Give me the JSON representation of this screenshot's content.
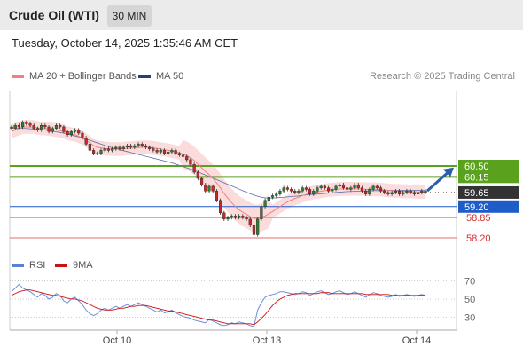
{
  "header": {
    "instrument": "Crude Oil (WTI)",
    "timeframe": "30 MIN"
  },
  "timestamp": "Tuesday, October 14, 2025 1:35:46 AM CET",
  "legend": {
    "bb_label": "MA 20 + Bollinger Bands",
    "ma50_label": "MA 50",
    "rsi_label": "RSI",
    "rsi_ma_label": "9MA"
  },
  "copyright": "Research © 2025 Trading Central",
  "colors": {
    "bb_fill": "#fbdcdc",
    "ma20": "#f08080",
    "ma50": "#5b6fa8",
    "support_green": "#5aa11e",
    "pivot_blue": "#1e5cc8",
    "support_red": "#e06b6b",
    "arrow": "#2a5db0",
    "rsi": "#6f8fd8",
    "rsi_ma": "#cc1111"
  },
  "chart_data": {
    "type": "candlestick",
    "price_axis": {
      "ylim": [
        57.95,
        60.95
      ]
    },
    "x_ticks": [
      "Oct 10",
      "Oct 13",
      "Oct 14"
    ],
    "levels": [
      {
        "value": 60.5,
        "label": "60.50",
        "kind": "resistance",
        "color": "#5aa11e"
      },
      {
        "value": 60.15,
        "label": "60.15",
        "kind": "resistance",
        "color": "#5aa11e"
      },
      {
        "value": 59.65,
        "label": "59.65",
        "kind": "last_price",
        "color": "#333333"
      },
      {
        "value": 59.2,
        "label": "59.20",
        "kind": "pivot",
        "color": "#1e5cc8"
      },
      {
        "value": 58.85,
        "label": "58.85",
        "kind": "support",
        "color": "#e06b6b"
      },
      {
        "value": 58.2,
        "label": "58.20",
        "kind": "support",
        "color": "#e06b6b"
      }
    ],
    "close_series": [
      61.7,
      61.8,
      61.75,
      61.9,
      61.85,
      61.8,
      61.7,
      61.65,
      61.8,
      61.75,
      61.6,
      61.7,
      61.8,
      61.75,
      61.6,
      61.5,
      61.6,
      61.65,
      61.55,
      61.4,
      61.2,
      61.0,
      60.9,
      60.9,
      61.0,
      61.05,
      61.0,
      61.05,
      61.1,
      61.05,
      61.1,
      61.15,
      61.1,
      61.15,
      61.2,
      61.15,
      61.1,
      61.05,
      61.0,
      60.95,
      61.0,
      60.9,
      60.95,
      61.0,
      60.9,
      60.85,
      60.8,
      60.7,
      60.55,
      60.3,
      60.1,
      59.9,
      59.7,
      59.85,
      59.7,
      59.4,
      59.0,
      58.8,
      58.85,
      58.9,
      58.85,
      58.9,
      58.85,
      58.8,
      58.6,
      58.3,
      58.8,
      59.2,
      59.4,
      59.5,
      59.55,
      59.6,
      59.7,
      59.8,
      59.75,
      59.7,
      59.65,
      59.7,
      59.8,
      59.75,
      59.6,
      59.7,
      59.8,
      59.85,
      59.8,
      59.7,
      59.75,
      59.85,
      59.9,
      59.8,
      59.75,
      59.8,
      59.9,
      59.8,
      59.7,
      59.6,
      59.75,
      59.85,
      59.8,
      59.7,
      59.65,
      59.6,
      59.65,
      59.7,
      59.6,
      59.65,
      59.7,
      59.65,
      59.6,
      59.65,
      59.7,
      59.65
    ],
    "ma20_series": [
      61.6,
      61.65,
      61.7,
      61.75,
      61.75,
      61.75,
      61.75,
      61.72,
      61.7,
      61.7,
      61.68,
      61.66,
      61.65,
      61.63,
      61.6,
      61.55,
      61.52,
      61.5,
      61.45,
      61.4,
      61.32,
      61.24,
      61.15,
      61.1,
      61.08,
      61.06,
      61.05,
      61.04,
      61.04,
      61.04,
      61.05,
      61.06,
      61.07,
      61.08,
      61.09,
      61.1,
      61.1,
      61.09,
      61.08,
      61.06,
      61.04,
      61.02,
      61.0,
      60.98,
      60.95,
      60.92,
      60.88,
      60.83,
      60.76,
      60.67,
      60.56,
      60.44,
      60.32,
      60.22,
      60.1,
      59.96,
      59.8,
      59.62,
      59.47,
      59.33,
      59.2,
      59.1,
      59.02,
      58.95,
      58.88,
      58.82,
      58.82,
      58.85,
      58.9,
      58.97,
      59.04,
      59.12,
      59.2,
      59.28,
      59.35,
      59.41,
      59.46,
      59.5,
      59.55,
      59.59,
      59.62,
      59.65,
      59.67,
      59.69,
      59.71,
      59.73,
      59.74,
      59.75,
      59.76,
      59.77,
      59.77,
      59.77,
      59.77,
      59.77,
      59.76,
      59.75,
      59.75,
      59.75,
      59.75,
      59.74,
      59.73,
      59.72,
      59.71,
      59.7,
      59.7,
      59.69,
      59.69,
      59.68,
      59.68,
      59.67,
      59.67,
      59.66
    ],
    "ma50_series": [
      61.72,
      61.72,
      61.71,
      61.7,
      61.7,
      61.69,
      61.68,
      61.67,
      61.66,
      61.65,
      61.63,
      61.61,
      61.59,
      61.57,
      61.55,
      61.52,
      61.49,
      61.46,
      61.43,
      61.4,
      61.36,
      61.32,
      61.28,
      61.24,
      61.2,
      61.16,
      61.12,
      61.08,
      61.05,
      61.02,
      60.99,
      60.96,
      60.93,
      60.9,
      60.87,
      60.84,
      60.81,
      60.78,
      60.75,
      60.72,
      60.69,
      60.66,
      60.63,
      60.6,
      60.56,
      60.52,
      60.48,
      60.44,
      60.4,
      60.36,
      60.31,
      60.26,
      60.21,
      60.16,
      60.11,
      60.06,
      60.01,
      59.96,
      59.91,
      59.86,
      59.81,
      59.76,
      59.71,
      59.66,
      59.61,
      59.57,
      59.53,
      59.5,
      59.48,
      59.47,
      59.47,
      59.48,
      59.49,
      59.5,
      59.51,
      59.52,
      59.53,
      59.54,
      59.56,
      59.57,
      59.58,
      59.59,
      59.6,
      59.61,
      59.62,
      59.63,
      59.64,
      59.65,
      59.66,
      59.67,
      59.68,
      59.68,
      59.69,
      59.69,
      59.7,
      59.7,
      59.7,
      59.71,
      59.71,
      59.71,
      59.71,
      59.72,
      59.72,
      59.72,
      59.72,
      59.72,
      59.72,
      59.72,
      59.72,
      59.72,
      59.72,
      59.72
    ],
    "rsi_axis": {
      "ylim": [
        18,
        80
      ],
      "ticks": [
        70,
        50,
        30
      ]
    },
    "rsi_series": [
      58,
      62,
      66,
      62,
      60,
      58,
      55,
      52,
      56,
      54,
      50,
      52,
      56,
      54,
      48,
      46,
      50,
      52,
      48,
      44,
      38,
      34,
      32,
      34,
      38,
      40,
      38,
      40,
      42,
      40,
      42,
      44,
      42,
      44,
      46,
      44,
      42,
      40,
      38,
      36,
      38,
      35,
      36,
      38,
      35,
      33,
      31,
      30,
      29,
      27,
      26,
      25,
      24,
      28,
      26,
      24,
      22,
      21,
      22,
      24,
      23,
      25,
      24,
      23,
      21,
      20,
      38,
      46,
      52,
      54,
      55,
      56,
      58,
      58,
      57,
      56,
      55,
      56,
      58,
      57,
      54,
      56,
      58,
      59,
      57,
      55,
      56,
      58,
      59,
      57,
      55,
      56,
      58,
      56,
      54,
      52,
      55,
      57,
      56,
      54,
      53,
      52,
      53,
      55,
      53,
      54,
      55,
      54,
      53,
      54,
      55,
      54
    ],
    "rsi_ma_series": [
      54,
      56,
      58,
      59,
      60,
      60,
      59,
      58,
      57,
      56,
      55,
      54,
      54,
      53,
      52,
      51,
      50,
      50,
      49,
      48,
      46,
      44,
      42,
      40,
      39,
      38,
      38,
      38,
      39,
      40,
      40,
      41,
      42,
      42,
      43,
      43,
      43,
      42,
      41,
      40,
      39,
      38,
      37,
      37,
      36,
      35,
      34,
      33,
      32,
      31,
      30,
      29,
      28,
      27,
      27,
      26,
      25,
      24,
      23,
      23,
      23,
      23,
      23,
      23,
      23,
      22,
      25,
      29,
      33,
      38,
      43,
      47,
      50,
      52,
      54,
      55,
      56,
      56,
      56,
      56,
      56,
      56,
      56,
      57,
      57,
      57,
      56,
      56,
      56,
      56,
      56,
      56,
      56,
      56,
      56,
      55,
      55,
      55,
      55,
      55,
      55,
      55,
      54,
      54,
      54,
      54,
      54,
      54,
      54,
      54,
      54,
      54
    ]
  }
}
